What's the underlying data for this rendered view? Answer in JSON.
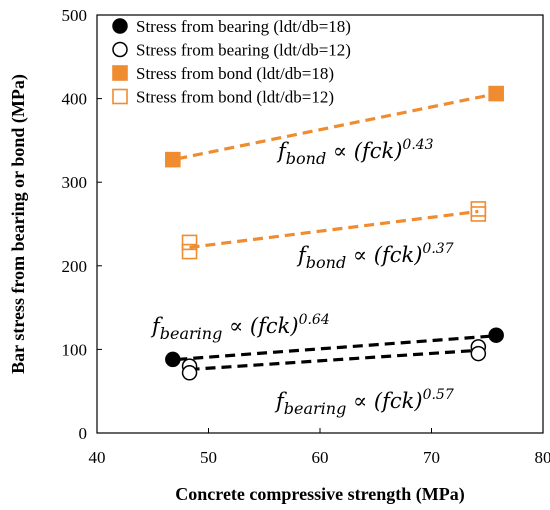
{
  "chart_data": {
    "type": "scatter",
    "xlabel": "Concrete compressive strength (MPa)",
    "ylabel": "Bar stress from bearing or bond (MPa)",
    "xlim": [
      40,
      80
    ],
    "ylim": [
      0,
      500
    ],
    "xticks": [
      "40",
      "50",
      "60",
      "70",
      "80"
    ],
    "yticks": [
      "0",
      "100",
      "200",
      "300",
      "400",
      "500"
    ],
    "grid": false,
    "legend_position": "top-left",
    "series": [
      {
        "name": "Stress from bearing (ldt/db=18)",
        "marker": "circle",
        "filled": true,
        "color": "#000000",
        "points": [
          [
            46.8,
            88
          ],
          [
            75.8,
            117
          ]
        ],
        "trend": [
          [
            47.2,
            88
          ],
          [
            75.5,
            116
          ]
        ]
      },
      {
        "name": "Stress from bearing (ldt/db=12)",
        "marker": "circle",
        "filled": false,
        "color": "#000000",
        "points": [
          [
            48.3,
            80
          ],
          [
            48.3,
            72
          ],
          [
            74.2,
            103
          ],
          [
            74.2,
            95
          ]
        ],
        "trend": [
          [
            48.3,
            76
          ],
          [
            74.3,
            99
          ]
        ]
      },
      {
        "name": "Stress from bond (ldt/db=18)",
        "marker": "square",
        "filled": true,
        "color": "#f08c30",
        "points": [
          [
            46.8,
            327
          ],
          [
            75.8,
            406
          ]
        ],
        "trend": [
          [
            47.2,
            328
          ],
          [
            75.5,
            405
          ]
        ]
      },
      {
        "name": "Stress from bond (ldt/db=12)",
        "marker": "square",
        "filled": false,
        "color": "#f08c30",
        "points": [
          [
            48.3,
            228
          ],
          [
            48.3,
            217
          ],
          [
            74.2,
            268
          ],
          [
            74.2,
            262
          ]
        ],
        "trend": [
          [
            48.3,
            222
          ],
          [
            74.2,
            265
          ]
        ]
      }
    ],
    "annotations": [
      {
        "base": "f",
        "sub": "bond",
        "mid": " ∝ (fck)",
        "sup": "0.43"
      },
      {
        "base": "f",
        "sub": "bond",
        "mid": " ∝ (fck)",
        "sup": "0.37"
      },
      {
        "base": "f",
        "sub": "bearing",
        "mid": " ∝ (fck)",
        "sup": "0.64"
      },
      {
        "base": "f",
        "sub": "bearing",
        "mid": " ∝ (fck)",
        "sup": "0.57"
      }
    ]
  }
}
